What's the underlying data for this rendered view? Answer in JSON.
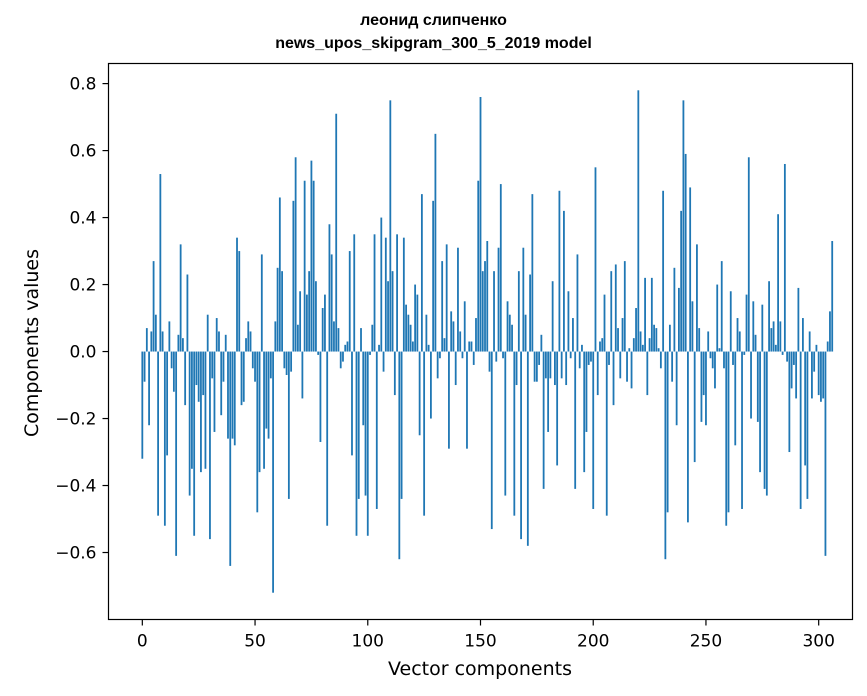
{
  "chart_data": {
    "type": "bar",
    "title": "леонид слипченко",
    "subtitle": "news_upos_skipgram_300_5_2019 model",
    "xlabel": "Vector components",
    "ylabel": "Components values",
    "xlim": [
      -15,
      315
    ],
    "ylim": [
      -0.8,
      0.86
    ],
    "xticks": [
      0,
      50,
      100,
      150,
      200,
      250,
      300
    ],
    "yticks": [
      -0.6,
      -0.4,
      -0.2,
      0.0,
      0.2,
      0.4,
      0.6,
      0.8
    ],
    "xtick_labels": [
      "0",
      "50",
      "100",
      "150",
      "200",
      "250",
      "300"
    ],
    "ytick_labels": [
      "−0.6",
      "−0.4",
      "−0.2",
      "0.0",
      "0.2",
      "0.4",
      "0.6",
      "0.8"
    ],
    "bar_color": "#1f77b4",
    "grid": false,
    "values": [
      -0.32,
      -0.09,
      0.07,
      -0.22,
      0.06,
      0.27,
      0.11,
      -0.49,
      0.53,
      0.06,
      -0.52,
      -0.31,
      0.09,
      -0.05,
      -0.12,
      -0.61,
      0.05,
      0.32,
      0.04,
      -0.16,
      0.23,
      -0.43,
      -0.35,
      -0.55,
      -0.1,
      -0.15,
      -0.36,
      -0.13,
      -0.35,
      0.11,
      -0.56,
      -0.08,
      -0.24,
      0.1,
      0.06,
      -0.19,
      -0.09,
      0.05,
      -0.26,
      -0.64,
      -0.26,
      -0.28,
      0.34,
      0.3,
      -0.16,
      -0.15,
      0.04,
      0.09,
      0.06,
      -0.05,
      -0.09,
      -0.48,
      -0.36,
      0.29,
      -0.35,
      -0.23,
      -0.26,
      -0.08,
      -0.72,
      0.09,
      0.25,
      0.46,
      0.24,
      -0.05,
      -0.07,
      -0.44,
      -0.06,
      0.45,
      0.58,
      0.08,
      0.18,
      -0.14,
      0.51,
      0.17,
      0.24,
      0.57,
      0.51,
      0.21,
      -0.01,
      -0.27,
      0.13,
      0.17,
      -0.52,
      0.38,
      0.29,
      0.09,
      0.71,
      0.07,
      -0.05,
      -0.03,
      0.02,
      0.03,
      0.3,
      -0.31,
      0.35,
      -0.55,
      -0.44,
      0.07,
      -0.22,
      -0.43,
      -0.55,
      -0.01,
      0.08,
      0.35,
      -0.47,
      0.02,
      0.4,
      -0.06,
      0.34,
      0.21,
      0.75,
      0.24,
      -0.13,
      0.35,
      -0.62,
      -0.44,
      0.34,
      0.14,
      0.11,
      0.08,
      0.03,
      0.2,
      0.17,
      -0.25,
      0.47,
      -0.49,
      0.11,
      0.02,
      -0.2,
      0.45,
      0.65,
      -0.08,
      -0.02,
      0.27,
      0.04,
      0.32,
      -0.29,
      0.12,
      0.09,
      -0.1,
      0.31,
      0.06,
      -0.02,
      0.15,
      -0.29,
      0.03,
      0.03,
      -0.04,
      0.1,
      0.51,
      0.76,
      0.24,
      0.27,
      0.33,
      -0.06,
      -0.53,
      0.24,
      -0.03,
      0.31,
      0.5,
      -0.02,
      -0.43,
      0.15,
      0.11,
      0.08,
      -0.49,
      -0.1,
      0.24,
      -0.56,
      0.31,
      0.11,
      -0.58,
      0.23,
      0.47,
      -0.09,
      -0.09,
      -0.04,
      0.05,
      -0.41,
      -0.08,
      -0.24,
      -0.08,
      0.21,
      -0.1,
      -0.34,
      0.48,
      -0.08,
      0.42,
      -0.1,
      0.18,
      -0.02,
      0.1,
      -0.41,
      0.29,
      -0.05,
      0.02,
      -0.36,
      -0.24,
      -0.04,
      -0.03,
      -0.47,
      0.55,
      -0.13,
      0.03,
      0.04,
      0.17,
      -0.49,
      -0.04,
      0.24,
      -0.16,
      0.26,
      0.07,
      -0.08,
      0.1,
      0.27,
      -0.09,
      0.01,
      -0.11,
      0.04,
      0.13,
      0.78,
      0.06,
      0.02,
      0.22,
      -0.13,
      0.04,
      0.22,
      0.08,
      0.07,
      0.01,
      -0.05,
      0.48,
      -0.62,
      -0.48,
      0.08,
      -0.09,
      0.25,
      -0.22,
      0.19,
      0.42,
      0.75,
      0.59,
      -0.51,
      0.49,
      0.15,
      -0.33,
      0.32,
      0.07,
      -0.21,
      -0.13,
      -0.22,
      0.06,
      -0.02,
      -0.05,
      -0.11,
      0.2,
      0.01,
      0.27,
      -0.05,
      -0.52,
      -0.48,
      0.18,
      -0.04,
      -0.28,
      0.1,
      0.06,
      -0.47,
      -0.01,
      0.17,
      0.58,
      -0.2,
      0.15,
      0.05,
      -0.21,
      -0.36,
      0.14,
      -0.41,
      -0.43,
      0.21,
      0.07,
      0.09,
      0.02,
      0.41,
      0.09,
      -0.01,
      0.56,
      -0.03,
      -0.3,
      -0.11,
      -0.04,
      -0.14,
      0.19,
      -0.47,
      0.1,
      -0.34,
      -0.44,
      0.06,
      -0.14,
      -0.06,
      0.02,
      -0.13,
      -0.15,
      -0.14,
      -0.61,
      0.03,
      0.12,
      0.33
    ]
  }
}
